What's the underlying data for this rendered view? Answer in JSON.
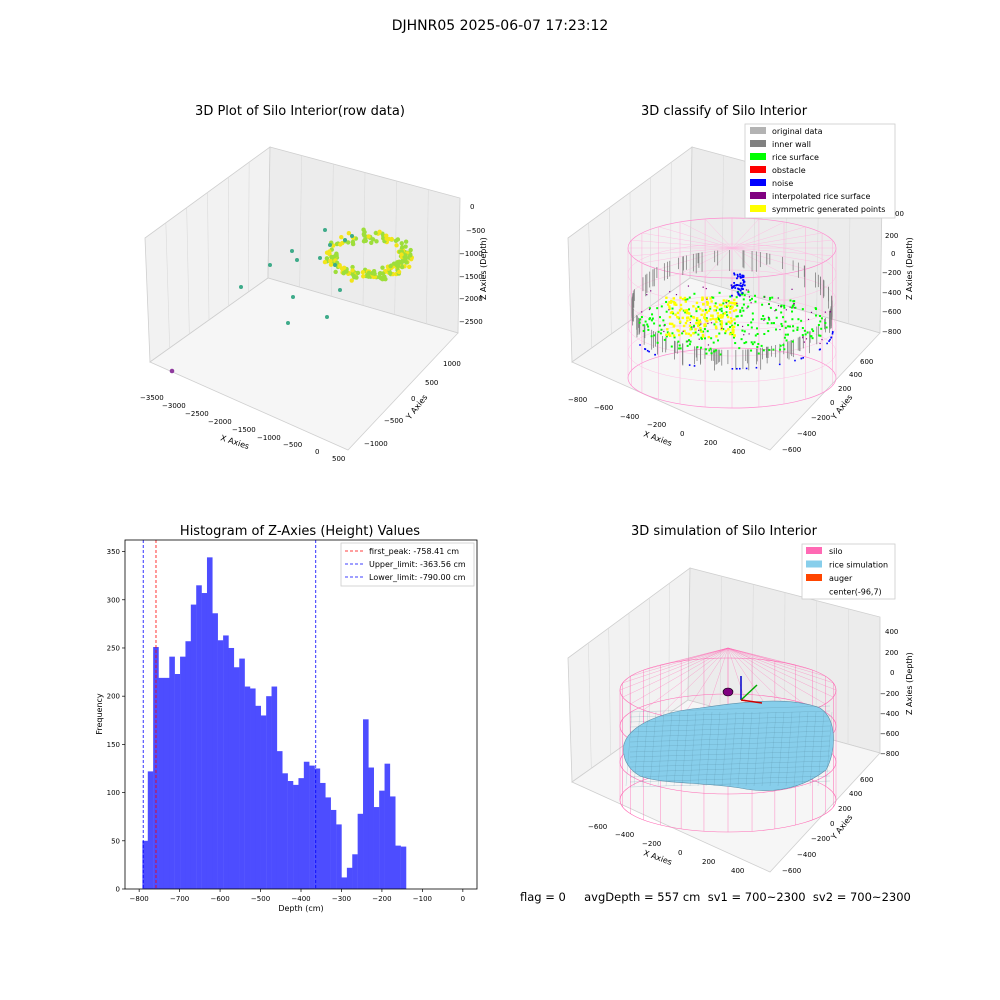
{
  "figure": {
    "title": "DJHNR05 2025-06-07 17:23:12",
    "footer": "flag = 0     avgDepth = 557 cm  sv1 = 700~2300  sv2 = 700~2300"
  },
  "chart_data": [
    {
      "type": "scatter",
      "title": "3D Plot of Silo Interior(row data)",
      "xlabel": "X Axies",
      "ylabel": "Y Axies",
      "zlabel": "Z Axies (Depth)",
      "x_ticks": [
        "−3500",
        "−3000",
        "−2500",
        "−2000",
        "−1500",
        "−1000",
        "−500",
        "0",
        "500"
      ],
      "y_ticks": [
        "−1000",
        "−500",
        "0",
        "500",
        "1000"
      ],
      "z_ticks": [
        "0",
        "−500",
        "−1000",
        "−1500",
        "−2000",
        "−2500"
      ],
      "colors": {
        "main": "#9dde3a",
        "alt": "#f2e51a",
        "outlier": "#3eab8a",
        "far": "#8f3a9e"
      },
      "grid": true
    },
    {
      "type": "scatter",
      "title": "3D classify of Silo Interior",
      "xlabel": "X Axies",
      "ylabel": "Y Axies",
      "zlabel": "Z Axies (Depth)",
      "x_ticks": [
        "−800",
        "−600",
        "−400",
        "−200",
        "0",
        "200",
        "400"
      ],
      "y_ticks": [
        "−600",
        "−400",
        "−200",
        "0",
        "200",
        "400",
        "600"
      ],
      "z_ticks": [
        "200",
        "0",
        "−200",
        "−400",
        "−600",
        "−800"
      ],
      "z_partial_top": "00",
      "legend_position": "top-right",
      "legend": [
        {
          "label": "original data",
          "color": "#b3b3b3"
        },
        {
          "label": "inner wall",
          "color": "#808080"
        },
        {
          "label": "rice surface",
          "color": "#00ff00"
        },
        {
          "label": "obstacle",
          "color": "#ff0000"
        },
        {
          "label": "noise",
          "color": "#0000ff"
        },
        {
          "label": "interpolated rice surface",
          "color": "#800080"
        },
        {
          "label": "symmetric generated points",
          "color": "#ffff00"
        }
      ],
      "grid": true
    },
    {
      "type": "bar",
      "title": "Histogram of Z-Axies (Height) Values",
      "xlabel": "Depth (cm)",
      "ylabel": "Frequency",
      "xlim": [
        -835,
        35
      ],
      "ylim": [
        0,
        362
      ],
      "x_ticks": [
        -800,
        -700,
        -600,
        -500,
        -400,
        -300,
        -200,
        -100,
        0
      ],
      "y_ticks": [
        0,
        50,
        100,
        150,
        200,
        250,
        300,
        350
      ],
      "bin_start": -792,
      "bin_width": 13.3,
      "values": [
        50,
        122,
        251,
        219,
        219,
        241,
        223,
        241,
        257,
        295,
        315,
        307,
        344,
        286,
        258,
        263,
        250,
        230,
        239,
        210,
        208,
        190,
        180,
        200,
        210,
        143,
        120,
        112,
        108,
        115,
        132,
        128,
        125,
        110,
        95,
        82,
        67,
        12,
        22,
        36,
        78,
        176,
        126,
        85,
        102,
        130,
        96,
        45,
        44
      ],
      "bar_color": "#4d4dff",
      "vlines": [
        {
          "label": "first_peak: -758.41 cm",
          "x": -758.41,
          "color": "#ff0000"
        },
        {
          "label": "Upper_limit: -363.56 cm",
          "x": -363.56,
          "color": "#0000ff"
        },
        {
          "label": "Lower_limit: -790.00 cm",
          "x": -790.0,
          "color": "#0000ff"
        }
      ],
      "legend_position": "top-right"
    },
    {
      "type": "area",
      "title": "3D simulation of Silo Interior",
      "xlabel": "X Axies",
      "ylabel": "Y Axies",
      "zlabel": "Z Axies (Depth)",
      "x_ticks": [
        "−600",
        "−400",
        "−200",
        "0",
        "200",
        "400"
      ],
      "y_ticks": [
        "−600",
        "−400",
        "−200",
        "0",
        "200",
        "400",
        "600"
      ],
      "z_ticks": [
        "400",
        "200",
        "0",
        "−200",
        "−400",
        "−600",
        "−800"
      ],
      "legend_position": "top-right",
      "legend": [
        {
          "label": "silo",
          "color": "#ff69b4"
        },
        {
          "label": "rice simulation",
          "color": "#87ceeb"
        },
        {
          "label": "auger",
          "color": "#ff4500"
        },
        {
          "label": "center(-96,7)",
          "color": "#ffffff"
        }
      ],
      "grid": true
    }
  ]
}
